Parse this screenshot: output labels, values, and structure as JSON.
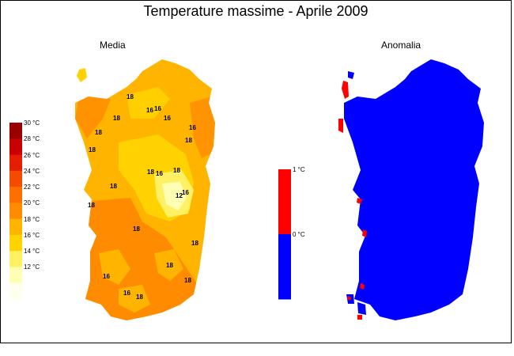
{
  "title": "Temperature massime - Aprile 2009",
  "panels": {
    "media": {
      "label": "Media"
    },
    "anomalia": {
      "label": "Anomalia"
    }
  },
  "media_legend": {
    "labels": [
      "30 °C",
      "28 °C",
      "26 °C",
      "24 °C",
      "22 °C",
      "20 °C",
      "18 °C",
      "16 °C",
      "14 °C",
      "12 °C"
    ],
    "colors": [
      "#9b0000",
      "#c80000",
      "#e61e00",
      "#f54b00",
      "#ff6e00",
      "#ff8c00",
      "#ffb400",
      "#ffd200",
      "#fff064",
      "#ffffb4",
      "#fffff0"
    ]
  },
  "anomaly_legend": {
    "labels": [
      "1 °C",
      "0 °C"
    ],
    "colors": [
      "#ff0000",
      "#0000ff"
    ]
  },
  "contour_labels": [
    "18",
    "16",
    "16",
    "18",
    "16",
    "16",
    "18",
    "18",
    "18",
    "18",
    "16",
    "18",
    "18",
    "16",
    "12",
    "18",
    "18",
    "18",
    "18",
    "16",
    "18",
    "16",
    "18"
  ]
}
